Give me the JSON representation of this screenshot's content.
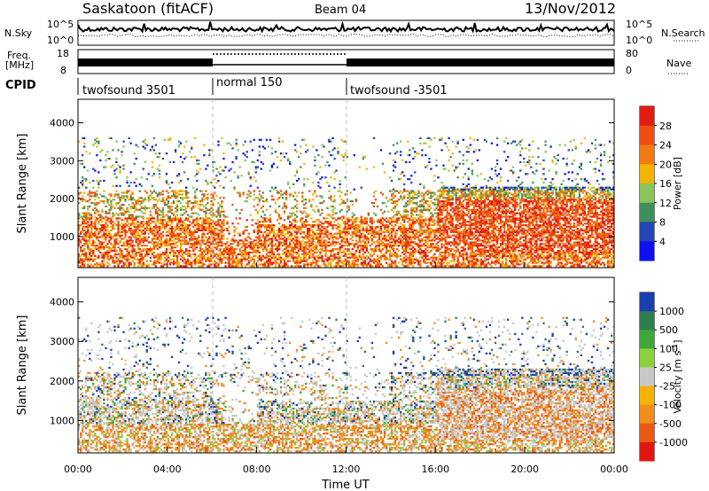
{
  "header": {
    "station": "Saskatoon (fitACF)",
    "beam": "Beam 04",
    "date": "13/Nov/2012"
  },
  "nsky_panel": {
    "left_label": "N.Sky",
    "right_label": "N.Search",
    "left_ticks": [
      "10^5",
      "10^0"
    ],
    "right_ticks": [
      "10^5",
      "10^0"
    ]
  },
  "freq_panel": {
    "left_label_line1": "Freq.",
    "left_label_line2": "[MHz]",
    "right_label": "Nave",
    "left_ticks": [
      "18",
      "8"
    ],
    "right_ticks": [
      "80",
      "0"
    ]
  },
  "cpid_panel": {
    "label": "CPID",
    "segments": [
      {
        "name": "twofsound 3501",
        "start_hour": 0,
        "end_hour": 6
      },
      {
        "name": "normal 150",
        "start_hour": 6,
        "end_hour": 12
      },
      {
        "name": "twofsound -3501",
        "start_hour": 12,
        "end_hour": 24
      }
    ]
  },
  "chart_data": [
    {
      "type": "heatmap",
      "panel": "power",
      "xlabel": "",
      "ylabel": "Slant Range [km]",
      "x_range_hours": [
        0,
        24
      ],
      "ylim": [
        180,
        4620
      ],
      "yticks": [
        "1000",
        "2000",
        "3000",
        "4000"
      ],
      "colorbar_label": "Power [dB]",
      "colorbar_ticks": [
        "4",
        "8",
        "12",
        "16",
        "20",
        "24",
        "28"
      ],
      "colorbar_colors": [
        "#0f0ff0",
        "#2346b4",
        "#3f8f5a",
        "#8ac45a",
        "#f3b400",
        "#f27a13",
        "#ee4f10",
        "#e21d0f"
      ],
      "description_hint": "Backscatter power concentrated 300-2000 km, strongest (red/orange) near 500-1500 km, broad band of echoes 16:00-24:00"
    },
    {
      "type": "heatmap",
      "panel": "velocity",
      "xlabel": "Time UT",
      "ylabel": "Slant Range [km]",
      "x_range_hours": [
        0,
        24
      ],
      "xticks": [
        "00:00",
        "04:00",
        "08:00",
        "12:00",
        "16:00",
        "20:00",
        "00:00"
      ],
      "ylim": [
        180,
        4620
      ],
      "yticks": [
        "1000",
        "2000",
        "3000",
        "4000"
      ],
      "colorbar_label": "Velocity [m s",
      "colorbar_label_sup": "-1",
      "colorbar_label_end": "]",
      "colorbar_ticks": [
        "1000",
        "500",
        "100",
        "25",
        "-25",
        "-100",
        "-500",
        "-1000"
      ],
      "colorbar_colors": [
        "#1a3fb0",
        "#2e7d4f",
        "#3ea63a",
        "#8bd13f",
        "#c8c8c8",
        "#f5b300",
        "#f28c1a",
        "#ea5a14",
        "#e2160f"
      ]
    }
  ]
}
